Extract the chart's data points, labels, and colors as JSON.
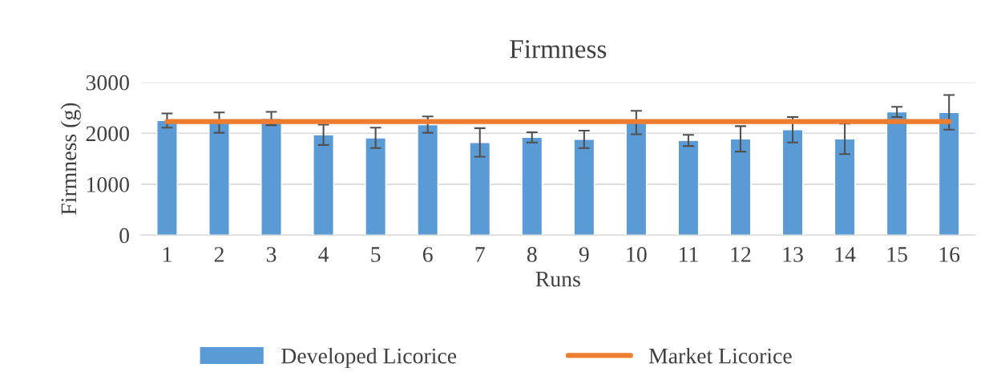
{
  "chart_data": {
    "type": "bar",
    "title": "Firmness",
    "xlabel": "Runs",
    "ylabel": "Firmness (g)",
    "categories": [
      "1",
      "2",
      "3",
      "4",
      "5",
      "6",
      "7",
      "8",
      "9",
      "10",
      "11",
      "12",
      "13",
      "14",
      "15",
      "16"
    ],
    "series": [
      {
        "name": "Developed Licorice",
        "color": "#5b9bd5",
        "values": [
          2250,
          2210,
          2290,
          1970,
          1910,
          2170,
          1820,
          1920,
          1880,
          2210,
          1860,
          1890,
          2070,
          1890,
          2420,
          2410
        ],
        "errors": [
          140,
          200,
          130,
          200,
          200,
          160,
          280,
          100,
          170,
          230,
          110,
          250,
          250,
          300,
          100,
          340
        ]
      },
      {
        "name": "Market Licorice",
        "type": "line",
        "color": "#ed7d31",
        "values": [
          2230,
          2230,
          2230,
          2230,
          2230,
          2230,
          2230,
          2230,
          2230,
          2230,
          2230,
          2230,
          2230,
          2230,
          2230,
          2230
        ]
      }
    ],
    "ylim": [
      0,
      3000
    ],
    "yticks": [
      0,
      1000,
      2000,
      3000
    ],
    "grid": "y",
    "legend": "bottom"
  }
}
